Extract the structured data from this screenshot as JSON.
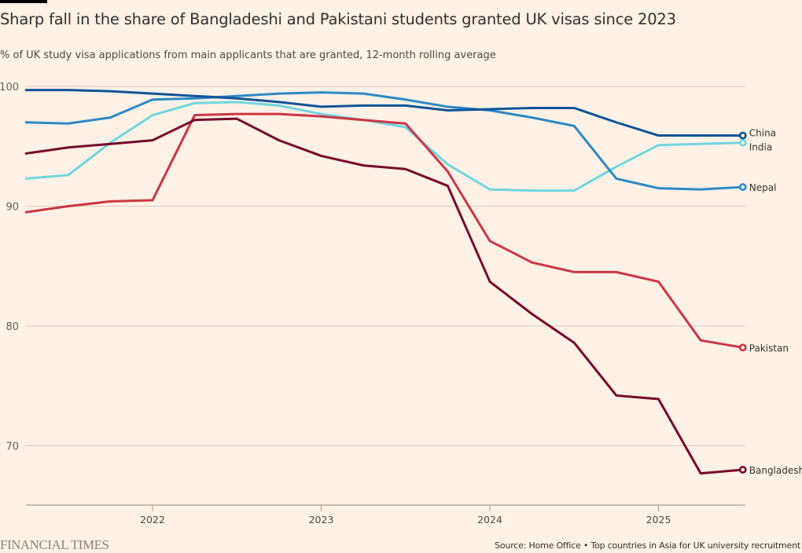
{
  "page": {
    "title": "Sharp fall in the share of Bangladeshi and Pakistani students granted UK visas since 2023",
    "subtitle": "% of UK study visa applications from main applicants that are granted, 12-month rolling average",
    "logo": "FINANCIAL TIMES",
    "source": "Source: Home Office • Top countries in Asia for UK university recruitment"
  },
  "chart_data": {
    "type": "line",
    "title": "Sharp fall in the share of Bangladeshi and Pakistani students granted UK visas since 2023",
    "subtitle": "% of UK study visa applications from main applicants that are granted, 12-month rolling average",
    "xlabel": "",
    "ylabel": "",
    "x": [
      2021.25,
      2021.5,
      2021.75,
      2022.0,
      2022.25,
      2022.5,
      2022.75,
      2023.0,
      2023.25,
      2023.5,
      2023.75,
      2024.0,
      2024.25,
      2024.5,
      2024.75,
      2025.0,
      2025.25,
      2025.5
    ],
    "xlim": [
      2021.25,
      2025.5
    ],
    "ylim": [
      65,
      100
    ],
    "x_ticks": [
      2022,
      2023,
      2024,
      2025
    ],
    "x_tick_labels": [
      "2022",
      "2023",
      "2024",
      "2025"
    ],
    "y_ticks": [
      70,
      80,
      90,
      100
    ],
    "y_tick_labels": [
      "70",
      "80",
      "90",
      "100"
    ],
    "grid": true,
    "legend": "direct-labels-right",
    "series": [
      {
        "name": "China",
        "color": "#0f5499",
        "values": [
          99.7,
          99.7,
          99.6,
          99.4,
          99.2,
          99.0,
          98.7,
          98.3,
          98.4,
          98.4,
          98.0,
          98.1,
          98.2,
          98.2,
          97.0,
          95.9,
          95.9,
          95.9
        ]
      },
      {
        "name": "India",
        "color": "#6fd6e0",
        "values": [
          92.3,
          92.6,
          95.3,
          97.6,
          98.6,
          98.7,
          98.4,
          97.7,
          97.2,
          96.6,
          93.5,
          91.4,
          91.3,
          91.3,
          93.3,
          95.1,
          95.2,
          95.3
        ]
      },
      {
        "name": "Nepal",
        "color": "#2b8ac6",
        "values": [
          97.0,
          96.9,
          97.4,
          98.9,
          99.0,
          99.2,
          99.4,
          99.5,
          99.4,
          98.9,
          98.3,
          98.0,
          97.4,
          96.7,
          92.3,
          91.5,
          91.4,
          91.6
        ]
      },
      {
        "name": "Pakistan",
        "color": "#cc3645",
        "values": [
          89.5,
          90.0,
          90.4,
          90.5,
          97.6,
          97.7,
          97.7,
          97.5,
          97.2,
          96.9,
          92.9,
          87.1,
          85.3,
          84.5,
          84.5,
          83.7,
          78.8,
          78.2
        ]
      },
      {
        "name": "Bangladesh",
        "color": "#750a2e",
        "values": [
          94.4,
          94.9,
          95.2,
          95.5,
          97.2,
          97.3,
          95.5,
          94.2,
          93.4,
          93.1,
          91.7,
          83.7,
          81.0,
          78.6,
          74.2,
          73.9,
          67.7,
          68.0
        ]
      }
    ]
  }
}
